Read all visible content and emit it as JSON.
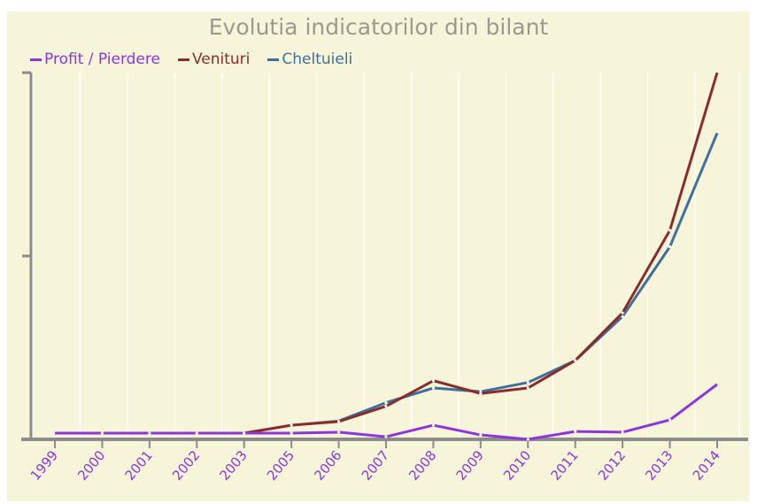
{
  "chart_data": {
    "type": "line",
    "title": "Evolutia indicatorilor din bilant",
    "xlabel": "",
    "ylabel": "",
    "categories": [
      "1999",
      "2000",
      "2001",
      "2002",
      "2003",
      "2005",
      "2006",
      "2007",
      "2008",
      "2009",
      "2010",
      "2011",
      "2012",
      "2013",
      "2014"
    ],
    "ylim": [
      0,
      2
    ],
    "y_ticks_unlabeled": [
      0,
      1,
      2
    ],
    "legend_position": "top-left",
    "grid": "vertical",
    "series": [
      {
        "name": "Profit / Pierdere",
        "color": "#8e35d8",
        "values": [
          0.034,
          0.034,
          0.034,
          0.034,
          0.034,
          0.034,
          0.039,
          0.014,
          0.077,
          0.024,
          0.0,
          0.043,
          0.039,
          0.106,
          0.3
        ]
      },
      {
        "name": "Venituri",
        "color": "#8b2c2c",
        "values": [
          0.034,
          0.034,
          0.034,
          0.034,
          0.034,
          0.077,
          0.097,
          0.18,
          0.32,
          0.25,
          0.28,
          0.43,
          0.69,
          1.14,
          2.0
        ]
      },
      {
        "name": "Cheltuieli",
        "color": "#3f6f9a",
        "values": [
          0.034,
          0.034,
          0.034,
          0.034,
          0.034,
          0.077,
          0.1,
          0.2,
          0.28,
          0.26,
          0.31,
          0.43,
          0.67,
          1.05,
          1.67
        ]
      }
    ]
  }
}
